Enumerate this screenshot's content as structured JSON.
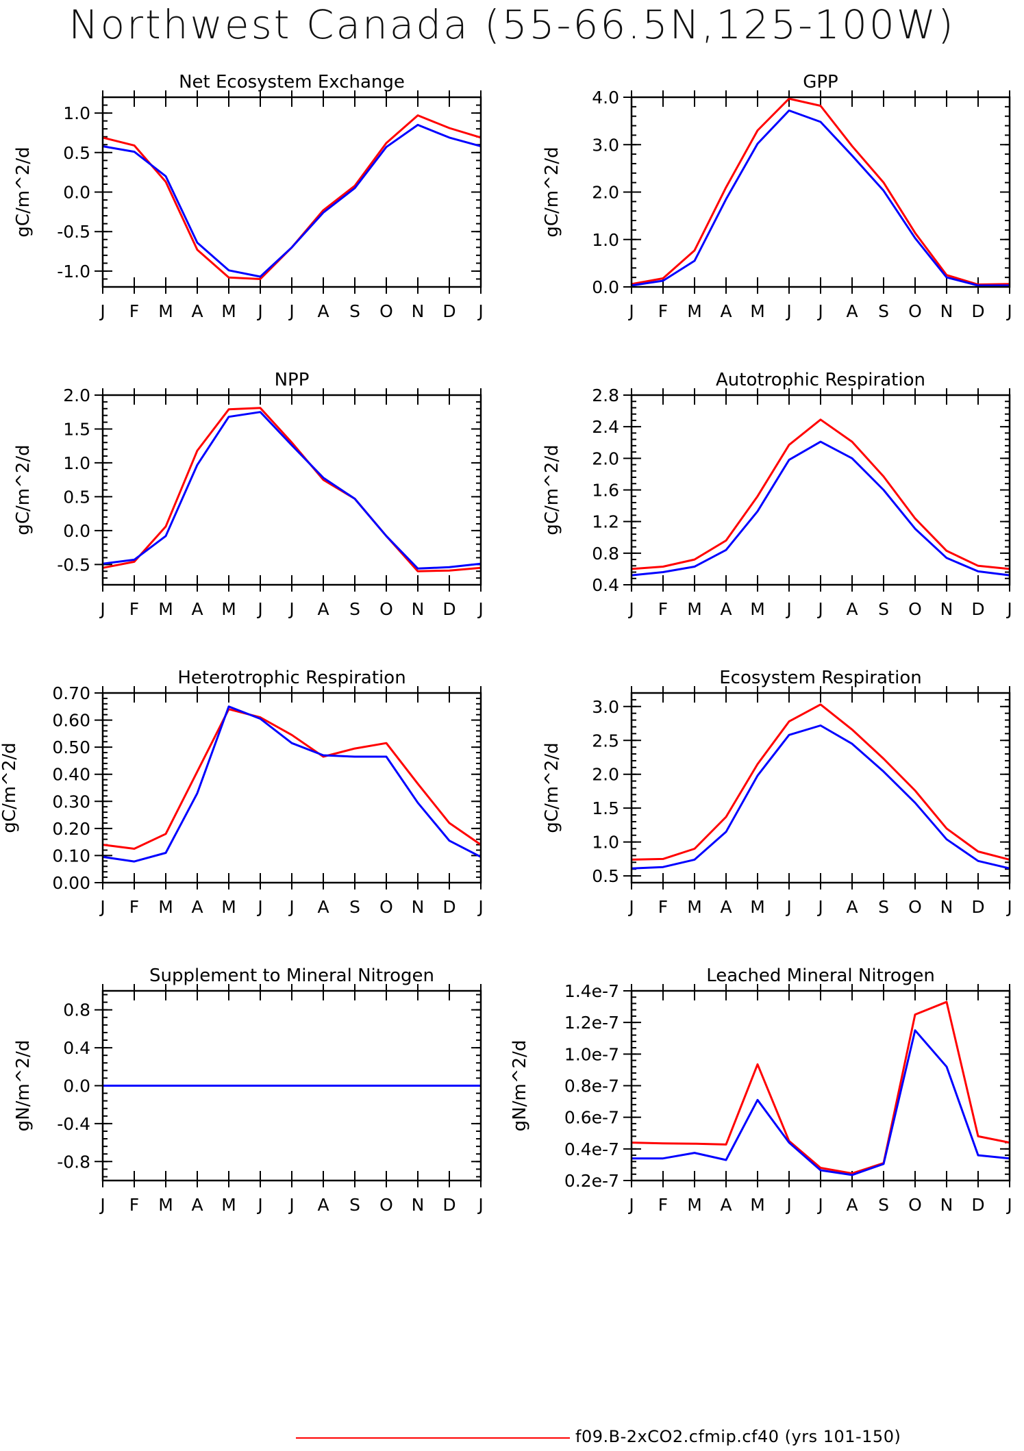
{
  "page": {
    "title": "Northwest Canada (55-66.5N,125-100W)"
  },
  "legend": {
    "entries": [
      {
        "label": "f09.B-2xCO2.cfmip.cf40 (yrs 101-150)",
        "color": "#ff0000"
      }
    ]
  },
  "chart_data": [
    {
      "type": "line",
      "title": "Net Ecosystem Exchange",
      "ylabel": "gC/m^2/d",
      "x": [
        "J",
        "F",
        "M",
        "A",
        "M",
        "J",
        "J",
        "A",
        "S",
        "O",
        "N",
        "D",
        "J"
      ],
      "ylim": [
        -1.2,
        1.2
      ],
      "yticks": [
        -1.0,
        -0.5,
        0.0,
        0.5,
        1.0
      ],
      "ytick_labels": [
        "-1.0",
        "-0.5",
        "0.0",
        "0.5",
        "1.0"
      ],
      "series": [
        {
          "color": "#ff0000",
          "values": [
            0.69,
            0.59,
            0.13,
            -0.73,
            -1.08,
            -1.1,
            -0.7,
            -0.23,
            0.08,
            0.62,
            0.97,
            0.81,
            0.69
          ]
        },
        {
          "color": "#0000ff",
          "values": [
            0.58,
            0.51,
            0.2,
            -0.64,
            -0.99,
            -1.07,
            -0.7,
            -0.26,
            0.05,
            0.57,
            0.85,
            0.69,
            0.58
          ]
        }
      ]
    },
    {
      "type": "line",
      "title": "GPP",
      "ylabel": "gC/m^2/d",
      "x": [
        "J",
        "F",
        "M",
        "A",
        "M",
        "J",
        "J",
        "A",
        "S",
        "O",
        "N",
        "D",
        "J"
      ],
      "ylim": [
        0.0,
        4.0
      ],
      "yticks": [
        0.0,
        1.0,
        2.0,
        3.0,
        4.0
      ],
      "ytick_labels": [
        "0.0",
        "1.0",
        "2.0",
        "3.0",
        "4.0"
      ],
      "series": [
        {
          "color": "#ff0000",
          "values": [
            0.06,
            0.18,
            0.77,
            2.1,
            3.3,
            3.97,
            3.82,
            2.97,
            2.2,
            1.14,
            0.25,
            0.05,
            0.06
          ]
        },
        {
          "color": "#0000ff",
          "values": [
            0.03,
            0.13,
            0.55,
            1.85,
            3.02,
            3.72,
            3.48,
            2.77,
            2.03,
            1.03,
            0.2,
            0.03,
            0.03
          ]
        }
      ]
    },
    {
      "type": "line",
      "title": "NPP",
      "ylabel": "gC/m^2/d",
      "x": [
        "J",
        "F",
        "M",
        "A",
        "M",
        "J",
        "J",
        "A",
        "S",
        "O",
        "N",
        "D",
        "J"
      ],
      "ylim": [
        -0.8,
        2.0
      ],
      "yticks": [
        -0.5,
        0.0,
        0.5,
        1.0,
        1.5,
        2.0
      ],
      "ytick_labels": [
        "-0.5",
        "0.0",
        "0.5",
        "1.0",
        "1.5",
        "2.0"
      ],
      "series": [
        {
          "color": "#ff0000",
          "values": [
            -0.55,
            -0.46,
            0.06,
            1.18,
            1.79,
            1.81,
            1.3,
            0.75,
            0.47,
            -0.08,
            -0.6,
            -0.59,
            -0.55
          ]
        },
        {
          "color": "#0000ff",
          "values": [
            -0.49,
            -0.43,
            -0.08,
            0.97,
            1.68,
            1.75,
            1.26,
            0.78,
            0.47,
            -0.08,
            -0.56,
            -0.54,
            -0.49
          ]
        }
      ]
    },
    {
      "type": "line",
      "title": "Autotrophic Respiration",
      "ylabel": "gC/m^2/d",
      "x": [
        "J",
        "F",
        "M",
        "A",
        "M",
        "J",
        "J",
        "A",
        "S",
        "O",
        "N",
        "D",
        "J"
      ],
      "ylim": [
        0.4,
        2.8
      ],
      "yticks": [
        0.4,
        0.8,
        1.2,
        1.6,
        2.0,
        2.4,
        2.8
      ],
      "ytick_labels": [
        "0.4",
        "0.8",
        "1.2",
        "1.6",
        "2.0",
        "2.4",
        "2.8"
      ],
      "series": [
        {
          "color": "#ff0000",
          "values": [
            0.6,
            0.63,
            0.72,
            0.96,
            1.52,
            2.17,
            2.49,
            2.21,
            1.77,
            1.24,
            0.83,
            0.64,
            0.6
          ]
        },
        {
          "color": "#0000ff",
          "values": [
            0.52,
            0.56,
            0.63,
            0.84,
            1.33,
            1.98,
            2.21,
            2.0,
            1.6,
            1.11,
            0.74,
            0.57,
            0.52
          ]
        }
      ]
    },
    {
      "type": "line",
      "title": "Heterotrophic Respiration",
      "ylabel": "gC/m^2/d",
      "x": [
        "J",
        "F",
        "M",
        "A",
        "M",
        "J",
        "J",
        "A",
        "S",
        "O",
        "N",
        "D",
        "J"
      ],
      "ylim": [
        0.0,
        0.7
      ],
      "yticks": [
        0.0,
        0.1,
        0.2,
        0.3,
        0.4,
        0.5,
        0.6,
        0.7
      ],
      "ytick_labels": [
        "0.00",
        "0.10",
        "0.20",
        "0.30",
        "0.40",
        "0.50",
        "0.60",
        "0.70"
      ],
      "series": [
        {
          "color": "#ff0000",
          "values": [
            0.14,
            0.125,
            0.18,
            0.41,
            0.64,
            0.61,
            0.545,
            0.465,
            0.495,
            0.515,
            0.365,
            0.22,
            0.14
          ]
        },
        {
          "color": "#0000ff",
          "values": [
            0.095,
            0.078,
            0.11,
            0.33,
            0.65,
            0.605,
            0.515,
            0.47,
            0.465,
            0.465,
            0.295,
            0.155,
            0.095
          ]
        }
      ]
    },
    {
      "type": "line",
      "title": "Ecosystem Respiration",
      "ylabel": "gC/m^2/d",
      "x": [
        "J",
        "F",
        "M",
        "A",
        "M",
        "J",
        "J",
        "A",
        "S",
        "O",
        "N",
        "D",
        "J"
      ],
      "ylim": [
        0.4,
        3.2
      ],
      "yticks": [
        0.5,
        1.0,
        1.5,
        2.0,
        2.5,
        3.0
      ],
      "ytick_labels": [
        "0.5",
        "1.0",
        "1.5",
        "2.0",
        "2.5",
        "3.0"
      ],
      "series": [
        {
          "color": "#ff0000",
          "values": [
            0.74,
            0.75,
            0.9,
            1.37,
            2.15,
            2.78,
            3.03,
            2.66,
            2.23,
            1.76,
            1.2,
            0.86,
            0.74
          ]
        },
        {
          "color": "#0000ff",
          "values": [
            0.61,
            0.63,
            0.74,
            1.15,
            1.98,
            2.58,
            2.72,
            2.45,
            2.04,
            1.58,
            1.04,
            0.72,
            0.61
          ]
        }
      ]
    },
    {
      "type": "line",
      "title": "Supplement to Mineral Nitrogen",
      "ylabel": "gN/m^2/d",
      "x": [
        "J",
        "F",
        "M",
        "A",
        "M",
        "J",
        "J",
        "A",
        "S",
        "O",
        "N",
        "D",
        "J"
      ],
      "ylim": [
        -1.0,
        1.0
      ],
      "yticks": [
        -0.8,
        -0.4,
        0.0,
        0.4,
        0.8
      ],
      "ytick_labels": [
        "-0.8",
        "-0.4",
        "0.0",
        "0.4",
        "0.8"
      ],
      "series": [
        {
          "color": "#ff0000",
          "values": [
            0,
            0,
            0,
            0,
            0,
            0,
            0,
            0,
            0,
            0,
            0,
            0,
            0
          ]
        },
        {
          "color": "#0000ff",
          "values": [
            0,
            0,
            0,
            0,
            0,
            0,
            0,
            0,
            0,
            0,
            0,
            0,
            0
          ]
        }
      ]
    },
    {
      "type": "line",
      "title": "Leached Mineral Nitrogen",
      "ylabel": "gN/m^2/d",
      "x": [
        "J",
        "F",
        "M",
        "A",
        "M",
        "J",
        "J",
        "A",
        "S",
        "O",
        "N",
        "D",
        "J"
      ],
      "ylim": [
        2e-08,
        1.4e-07
      ],
      "yticks": [
        2e-08,
        4e-08,
        6e-08,
        8e-08,
        1e-07,
        1.2e-07,
        1.4e-07
      ],
      "ytick_labels": [
        "0.2e-7",
        "0.4e-7",
        "0.6e-7",
        "0.8e-7",
        "1.0e-7",
        "1.2e-7",
        "1.4e-7"
      ],
      "series": [
        {
          "color": "#ff0000",
          "values": [
            4.4e-08,
            4.35e-08,
            4.33e-08,
            4.28e-08,
            9.35e-08,
            4.5e-08,
            2.8e-08,
            2.45e-08,
            3.1e-08,
            1.25e-07,
            1.33e-07,
            4.8e-08,
            4.4e-08
          ]
        },
        {
          "color": "#0000ff",
          "values": [
            3.4e-08,
            3.4e-08,
            3.75e-08,
            3.3e-08,
            7.1e-08,
            4.4e-08,
            2.65e-08,
            2.35e-08,
            3.05e-08,
            1.15e-07,
            9.2e-08,
            3.6e-08,
            3.4e-08
          ]
        }
      ]
    }
  ]
}
